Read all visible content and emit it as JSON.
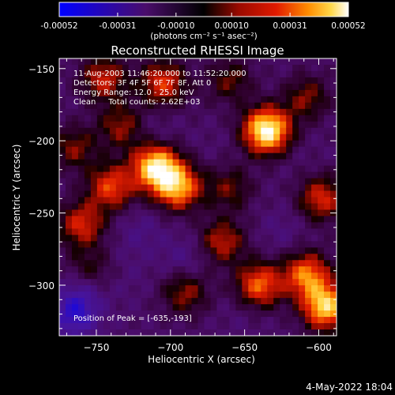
{
  "colorbar": {
    "ticks": [
      "-0.00052",
      "-0.00031",
      "-0.00010",
      "0.00010",
      "0.00031",
      "0.00052"
    ],
    "tick_values": [
      -0.00052,
      -0.00031,
      -0.0001,
      0.0001,
      0.00031,
      0.00052
    ],
    "range": [
      -0.00052,
      0.00052
    ],
    "unit_label": "(photons cm⁻² s⁻¹ asec⁻²)",
    "colors": [
      "#0000ff",
      "#3a0a8c",
      "#4a0d6a",
      "#000000",
      "#5a0000",
      "#9a0a00",
      "#e01a00",
      "#ff8c00",
      "#ffd84a",
      "#ffffff"
    ]
  },
  "footer": {
    "timestamp": "4-May-2022 18:04"
  },
  "chart_data": {
    "type": "heatmap",
    "title": "Reconstructed RHESSI Image",
    "xlabel": "Heliocentric X (arcsec)",
    "ylabel": "Heliocentric Y (arcsec)",
    "xlim": [
      -775,
      -588
    ],
    "ylim": [
      -335,
      -143
    ],
    "x_ticks": [
      -750,
      -700,
      -650,
      -600
    ],
    "y_ticks": [
      -150,
      -200,
      -250,
      -300
    ],
    "x_tick_labels": [
      "−750",
      "−700",
      "−650",
      "−600"
    ],
    "y_tick_labels": [
      "−150",
      "−200",
      "−250",
      "−300"
    ],
    "info_lines": [
      "11-Aug-2003 11:46:20.000 to 11:52:20.000",
      "Detectors: 3F 4F 5F 6F 7F 8F, Att 0",
      "Energy Range: 12.0 - 25.0 keV",
      "Clean     Total counts: 2.62E+03"
    ],
    "peak_label": "Position of Peak = [-635,-193]",
    "peak": [
      -635,
      -193
    ],
    "sources": [
      {
        "x": -635,
        "y": -193,
        "value": 0.00052
      },
      {
        "x": -710,
        "y": -218,
        "value": 0.00045
      },
      {
        "x": -695,
        "y": -232,
        "value": 0.00036
      },
      {
        "x": -595,
        "y": -315,
        "value": 0.00042
      },
      {
        "x": -608,
        "y": -293,
        "value": 0.0003
      },
      {
        "x": -640,
        "y": -300,
        "value": 0.00028
      },
      {
        "x": -740,
        "y": -232,
        "value": 0.00024
      },
      {
        "x": -760,
        "y": -258,
        "value": 0.0002
      },
      {
        "x": -705,
        "y": -160,
        "value": 0.00022
      },
      {
        "x": -745,
        "y": -157,
        "value": 0.00018
      },
      {
        "x": -665,
        "y": -270,
        "value": 0.00016
      },
      {
        "x": -690,
        "y": -305,
        "value": 0.00012
      },
      {
        "x": -598,
        "y": -240,
        "value": 0.0002
      },
      {
        "x": -733,
        "y": -190,
        "value": 0.00012
      },
      {
        "x": -608,
        "y": -170,
        "value": 0.0001
      },
      {
        "x": -660,
        "y": -158,
        "value": 8e-05
      },
      {
        "x": -765,
        "y": -205,
        "value": 0.0001
      },
      {
        "x": -660,
        "y": -233,
        "value": 8e-05
      },
      {
        "x": -755,
        "y": -290,
        "value": 6e-05
      },
      {
        "x": -720,
        "y": -262,
        "value": -0.00018
      },
      {
        "x": -712,
        "y": -195,
        "value": -0.00016
      },
      {
        "x": -690,
        "y": -282,
        "value": -0.0002
      },
      {
        "x": -765,
        "y": -322,
        "value": -0.00034
      },
      {
        "x": -760,
        "y": -305,
        "value": -0.00026
      },
      {
        "x": -728,
        "y": -295,
        "value": -0.00014
      },
      {
        "x": -625,
        "y": -262,
        "value": -0.00016
      },
      {
        "x": -670,
        "y": -205,
        "value": -0.00012
      },
      {
        "x": -610,
        "y": -210,
        "value": -0.00012
      },
      {
        "x": -650,
        "y": -318,
        "value": -0.00014
      },
      {
        "x": -680,
        "y": -175,
        "value": -0.0001
      },
      {
        "x": -730,
        "y": -275,
        "value": -0.00012
      }
    ]
  }
}
